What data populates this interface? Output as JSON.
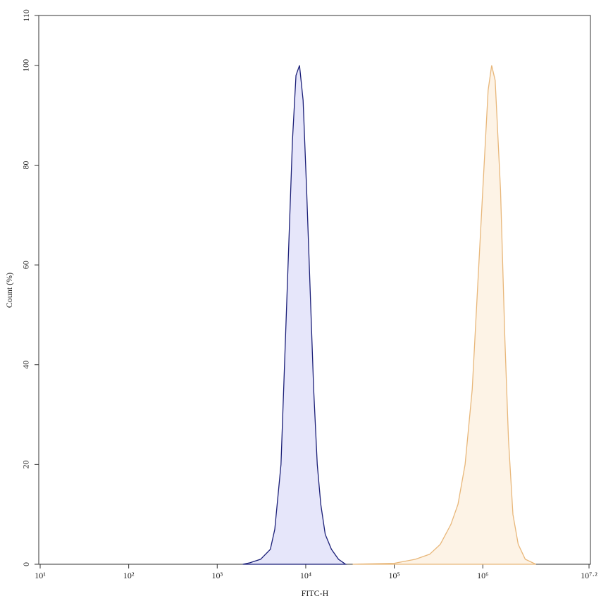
{
  "chart_data": {
    "type": "area",
    "x_label": "FITC-H",
    "y_label": "Count (%)",
    "xscale": "log",
    "xlim": [
      10,
      15848931.92
    ],
    "ylim": [
      0,
      110
    ],
    "xticks": [
      {
        "value": 10,
        "label": "10¹"
      },
      {
        "value": 100,
        "label": "10²"
      },
      {
        "value": 1000,
        "label": "10³"
      },
      {
        "value": 10000,
        "label": "10⁴"
      },
      {
        "value": 100000,
        "label": "10⁵"
      },
      {
        "value": 1000000,
        "label": "10⁶"
      },
      {
        "value": 15848931.92,
        "label": "10⁷·²"
      }
    ],
    "yticks": [
      0,
      20,
      40,
      60,
      80,
      100,
      110
    ],
    "series": [
      {
        "color": "#1b1f78",
        "fill": "#e6e6fa",
        "x": [
          1950,
          2340,
          3090,
          3980,
          4470,
          5250,
          5890,
          6460,
          7080,
          7760,
          8510,
          9330,
          10230,
          11220,
          12300,
          13490,
          14790,
          16600,
          19500,
          23440,
          28180
        ],
        "values": [
          0,
          0.3,
          1,
          3,
          7,
          20,
          45,
          65,
          85,
          98,
          100,
          93,
          75,
          55,
          35,
          20,
          12,
          6,
          3,
          1,
          0
        ]
      },
      {
        "color": "#e8b77a",
        "fill": "#fdf3e6",
        "x": [
          33900,
          100000,
          173800,
          251200,
          331100,
          436500,
          524800,
          631000,
          758600,
          871000,
          1000000,
          1148000,
          1259000,
          1380000,
          1585000,
          1778000,
          1950000,
          2188000,
          2512000,
          3020000,
          3981000
        ],
        "values": [
          0,
          0.2,
          1,
          2,
          4,
          8,
          12,
          20,
          35,
          55,
          75,
          95,
          100,
          97,
          75,
          45,
          25,
          10,
          4,
          1,
          0
        ]
      }
    ]
  }
}
